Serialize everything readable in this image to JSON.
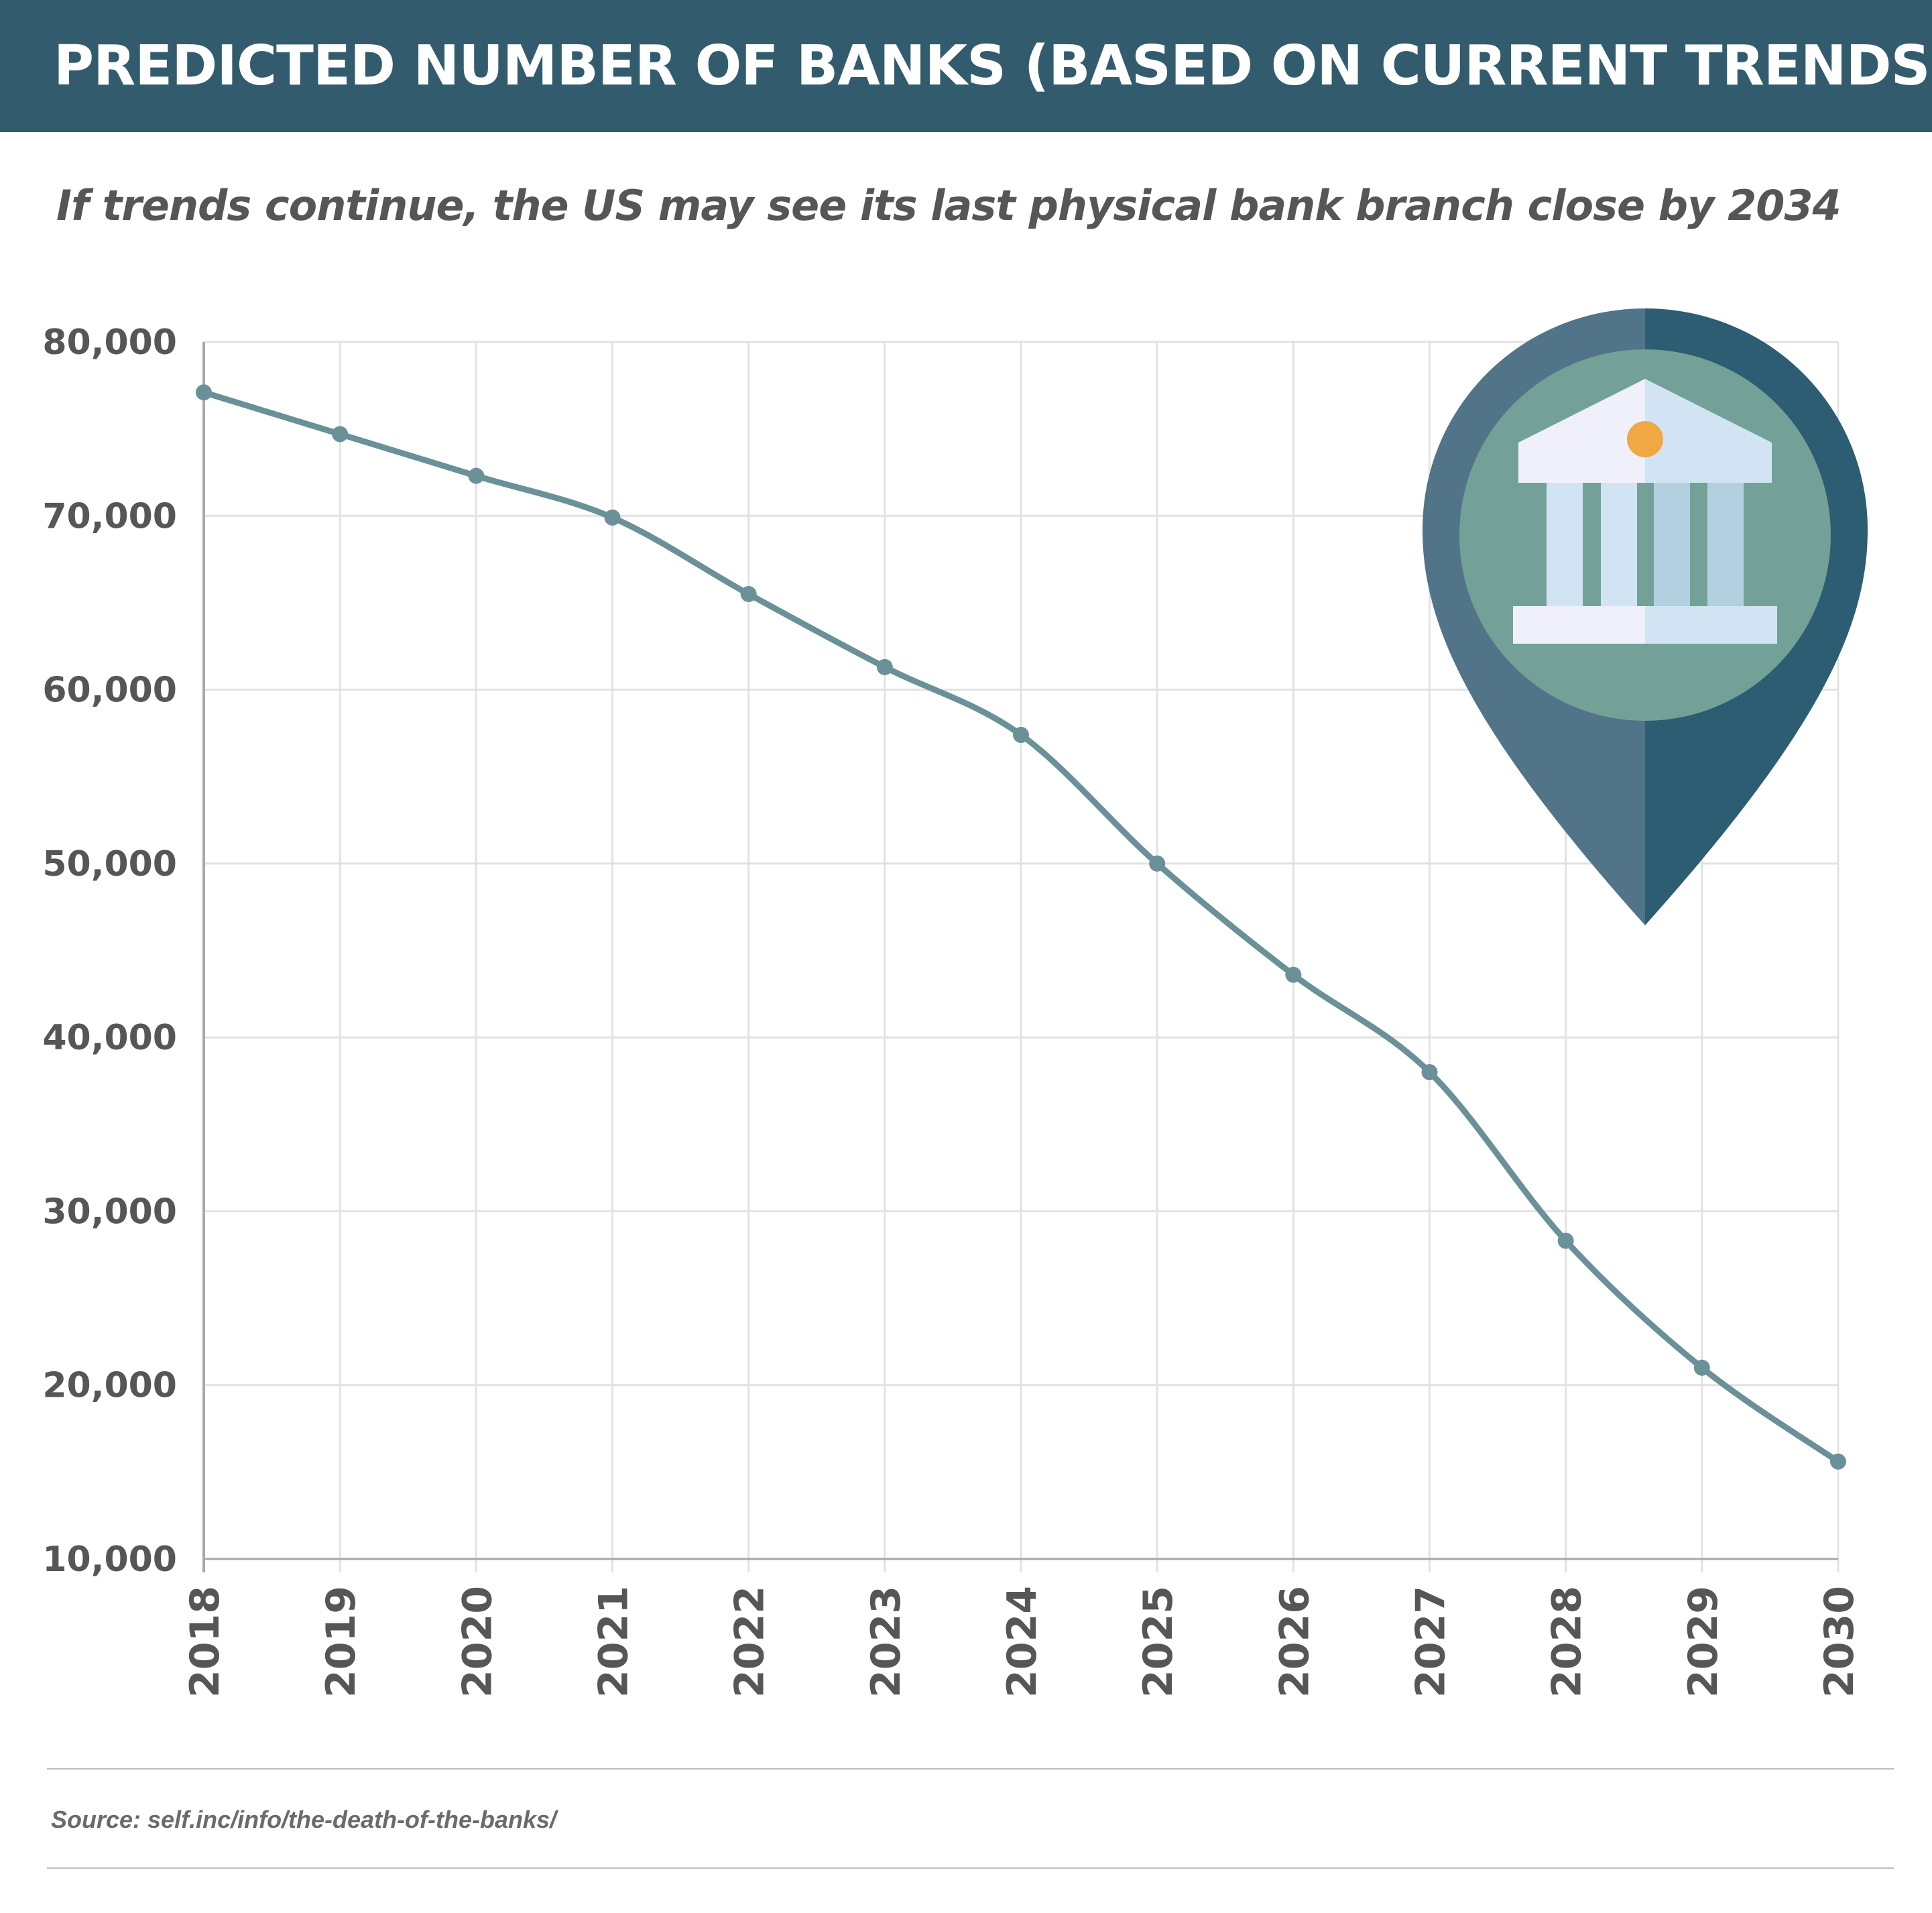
{
  "header": {
    "title": "PREDICTED NUMBER OF BANKS (BASED ON CURRENT TRENDS)"
  },
  "subtitle": "If trends continue, the US may see its last physical bank branch close by 2034",
  "source": "Source: self.inc/info/the-death-of-the-banks/",
  "colors": {
    "header_bg": "#325c6e",
    "line": "#6a9197",
    "grid": "#e2e2e2",
    "pin_left": "#527488",
    "pin_right": "#2c5d72",
    "pin_circle": "#73a198",
    "bank_light": "#f0f0fa",
    "bank_blue": "#d2e4f3",
    "bank_col_dark": "#b3d0e0",
    "coin": "#f0a842"
  },
  "icon": "map-pin-bank-icon",
  "chart_data": {
    "type": "line",
    "title": "PREDICTED NUMBER OF BANKS (BASED ON CURRENT TRENDS)",
    "subtitle": "If trends continue, the US may see its last physical bank branch close by 2034",
    "x": [
      "2018",
      "2019",
      "2020",
      "2021",
      "2022",
      "2023",
      "2024",
      "2025",
      "2026",
      "2027",
      "2028",
      "2029",
      "2030"
    ],
    "series": [
      {
        "values": [
          77100,
          74700,
          72300,
          69900,
          65500,
          61300,
          57400,
          50000,
          43600,
          38000,
          28300,
          21000,
          15600
        ]
      }
    ],
    "ylim": [
      10000,
      80000
    ],
    "yticks": [
      10000,
      20000,
      30000,
      40000,
      50000,
      60000,
      70000,
      80000
    ],
    "ytick_labels": [
      "10,000",
      "20,000",
      "30,000",
      "40,000",
      "50,000",
      "60,000",
      "70,000",
      "80,000"
    ],
    "xlabel": "",
    "ylabel": "",
    "grid": true,
    "legend": "none"
  }
}
